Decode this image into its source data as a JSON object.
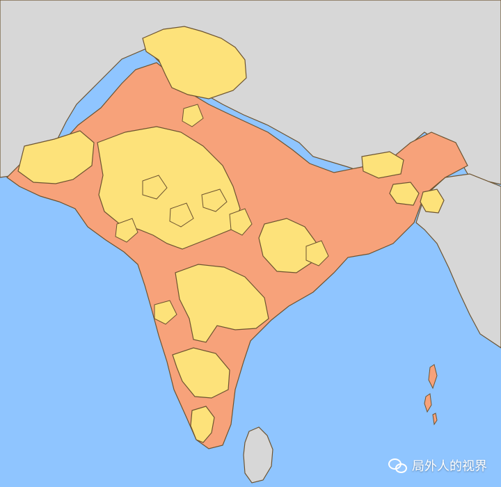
{
  "map": {
    "colors": {
      "ocean": "#8fc5ff",
      "land_neutral": "#d7d7d7",
      "region_a": "#f7a27a",
      "region_b": "#fde27a",
      "outline": "#6c5330"
    }
  },
  "watermark": {
    "label": "局外人的视界",
    "icon": "wechat-icon"
  }
}
